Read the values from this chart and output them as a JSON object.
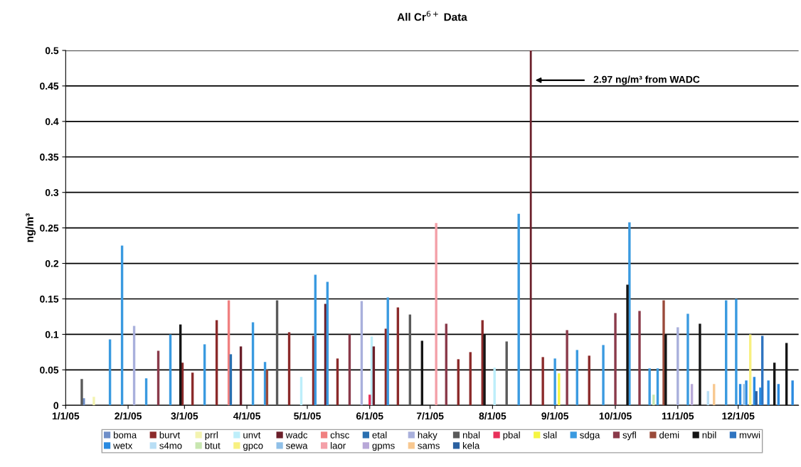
{
  "chart_data": {
    "type": "bar",
    "title": "All Cr$^{6+}$ Data",
    "ylabel": "ng/m³",
    "xlim": [
      "2005-01-01",
      "2005-12-31"
    ],
    "xticks": [
      {
        "value": "2005-01-01",
        "label": "1/1/05"
      },
      {
        "value": "2005-02-01",
        "label": "2/1/05"
      },
      {
        "value": "2005-03-01",
        "label": "3/1/05"
      },
      {
        "value": "2005-04-01",
        "label": "4/1/05"
      },
      {
        "value": "2005-05-01",
        "label": "5/1/05"
      },
      {
        "value": "2005-06-01",
        "label": "6/1/05"
      },
      {
        "value": "2005-07-01",
        "label": "7/1/05"
      },
      {
        "value": "2005-08-01",
        "label": "8/1/05"
      },
      {
        "value": "2005-09-01",
        "label": "9/1/05"
      },
      {
        "value": "2005-10-01",
        "label": "10/1/05"
      },
      {
        "value": "2005-11-01",
        "label": "11/1/05"
      },
      {
        "value": "2005-12-01",
        "label": "12/1/05"
      }
    ],
    "ylim": [
      0,
      0.5
    ],
    "yticks": [
      0,
      0.05,
      0.1,
      0.15,
      0.2,
      0.25,
      0.3,
      0.35,
      0.4,
      0.45,
      0.5
    ],
    "grid": "y",
    "legend": "bottom",
    "ref_lines": [
      {
        "axis": "x",
        "value": "2005-08-20",
        "color": "#6b1f2a"
      }
    ],
    "annotations": [
      "2.97 ng/m³ from WADC"
    ],
    "series": [
      {
        "name": "boma",
        "color": "#6f8fc8",
        "x": [
          "2005-01-10"
        ],
        "values": [
          0.01
        ]
      },
      {
        "name": "burvt",
        "color": "#8b2a2a",
        "x": [
          "2005-02-28",
          "2005-03-05",
          "2005-03-17",
          "2005-04-22",
          "2005-05-04",
          "2005-05-16",
          "2005-06-09",
          "2005-06-15",
          "2005-07-15",
          "2005-07-21",
          "2005-07-27",
          "2005-08-26",
          "2005-09-18"
        ],
        "values": [
          0.06,
          0.046,
          0.12,
          0.103,
          0.098,
          0.066,
          0.108,
          0.138,
          0.065,
          0.075,
          0.12,
          0.068,
          0.07
        ]
      },
      {
        "name": "prrl",
        "color": "#f3f3b0",
        "x": [
          "2005-01-15"
        ],
        "values": [
          0.012
        ]
      },
      {
        "name": "unvt",
        "color": "#bdeefa",
        "x": [
          "2005-04-28",
          "2005-06-02",
          "2005-08-02"
        ],
        "values": [
          0.04,
          0.097,
          0.053
        ]
      },
      {
        "name": "wadc",
        "color": "#6b1f2a",
        "x": [
          "2005-03-29",
          "2005-05-10",
          "2005-06-03"
        ],
        "values": [
          0.083,
          0.143,
          0.083
        ]
      },
      {
        "name": "chsc",
        "color": "#f08080",
        "x": [
          "2005-03-23"
        ],
        "values": [
          0.148
        ]
      },
      {
        "name": "etal",
        "color": "#2a6fb0",
        "x": [
          "2005-03-24"
        ],
        "values": [
          0.072
        ]
      },
      {
        "name": "haky",
        "color": "#a9b0dc",
        "x": [
          "2005-02-04",
          "2005-05-28",
          "2005-11-01"
        ],
        "values": [
          0.112,
          0.147,
          0.11
        ]
      },
      {
        "name": "nbal",
        "color": "#5a5a5a",
        "x": [
          "2005-01-09",
          "2005-04-16",
          "2005-06-21",
          "2005-08-08"
        ],
        "values": [
          0.037,
          0.148,
          0.128,
          0.09
        ]
      },
      {
        "name": "pbal",
        "color": "#e8305a",
        "x": [
          "2005-06-01"
        ],
        "values": [
          0.015
        ]
      },
      {
        "name": "slal",
        "color": "#f5f542",
        "x": [
          "2005-09-03"
        ],
        "values": [
          0.045
        ]
      },
      {
        "name": "sdga",
        "color": "#3a9ae0",
        "x": [
          "2005-01-23",
          "2005-01-29",
          "2005-02-10",
          "2005-02-22",
          "2005-03-11",
          "2005-04-04",
          "2005-04-10",
          "2005-05-05",
          "2005-05-11",
          "2005-06-10",
          "2005-08-14",
          "2005-09-01",
          "2005-09-12",
          "2005-09-25",
          "2005-10-08",
          "2005-10-18",
          "2005-10-22",
          "2005-11-06",
          "2005-11-25",
          "2005-11-30"
        ],
        "values": [
          0.093,
          0.225,
          0.038,
          0.1,
          0.086,
          0.117,
          0.061,
          0.184,
          0.174,
          0.152,
          0.27,
          0.066,
          0.078,
          0.085,
          0.258,
          0.052,
          0.052,
          0.129,
          0.148,
          0.15
        ]
      },
      {
        "name": "syfl",
        "color": "#8a3a4a",
        "x": [
          "2005-02-16",
          "2005-05-22",
          "2005-07-09",
          "2005-09-07",
          "2005-10-01",
          "2005-10-13"
        ],
        "values": [
          0.077,
          0.1,
          0.115,
          0.106,
          0.13,
          0.133
        ]
      },
      {
        "name": "demi",
        "color": "#9a4a3a",
        "x": [
          "2005-04-11",
          "2005-10-25"
        ],
        "values": [
          0.05,
          0.148
        ]
      },
      {
        "name": "nbil",
        "color": "#151515",
        "x": [
          "2005-02-27",
          "2005-06-27",
          "2005-07-28",
          "2005-10-07",
          "2005-10-26",
          "2005-11-12",
          "2005-12-19",
          "2005-12-25"
        ],
        "values": [
          0.114,
          0.091,
          0.1,
          0.17,
          0.1,
          0.115,
          0.06,
          0.088
        ]
      },
      {
        "name": "mvwi",
        "color": "#2f74c0",
        "x": [
          "2005-12-13"
        ],
        "values": [
          0.098
        ]
      },
      {
        "name": "wetx",
        "color": "#2a8ae0",
        "x": [
          "2005-12-02",
          "2005-12-05",
          "2005-12-09",
          "2005-12-12",
          "2005-12-16",
          "2005-12-21",
          "2005-12-28"
        ],
        "values": [
          0.03,
          0.035,
          0.04,
          0.025,
          0.035,
          0.03,
          0.035
        ]
      },
      {
        "name": "s4mo",
        "color": "#b8def5",
        "x": [
          "2005-11-16"
        ],
        "values": [
          0.02
        ]
      },
      {
        "name": "btut",
        "color": "#c8e6b0",
        "x": [
          "2005-10-20"
        ],
        "values": [
          0.015
        ]
      },
      {
        "name": "gpco",
        "color": "#f8f080",
        "x": [
          "2005-12-07"
        ],
        "values": [
          0.1
        ]
      },
      {
        "name": "sewa",
        "color": "#90c0e8",
        "x": [
          "2005-12-04"
        ],
        "values": [
          0.03
        ]
      },
      {
        "name": "laor",
        "color": "#f4a0a8",
        "x": [
          "2005-07-04"
        ],
        "values": [
          0.257
        ]
      },
      {
        "name": "gpms",
        "color": "#b8a8d8",
        "x": [
          "2005-11-08"
        ],
        "values": [
          0.03
        ]
      },
      {
        "name": "sams",
        "color": "#f8c890",
        "x": [
          "2005-11-19"
        ],
        "values": [
          0.03
        ]
      },
      {
        "name": "kela",
        "color": "#2a60a0",
        "x": [
          "2005-12-10"
        ],
        "values": [
          0.02
        ]
      }
    ]
  }
}
